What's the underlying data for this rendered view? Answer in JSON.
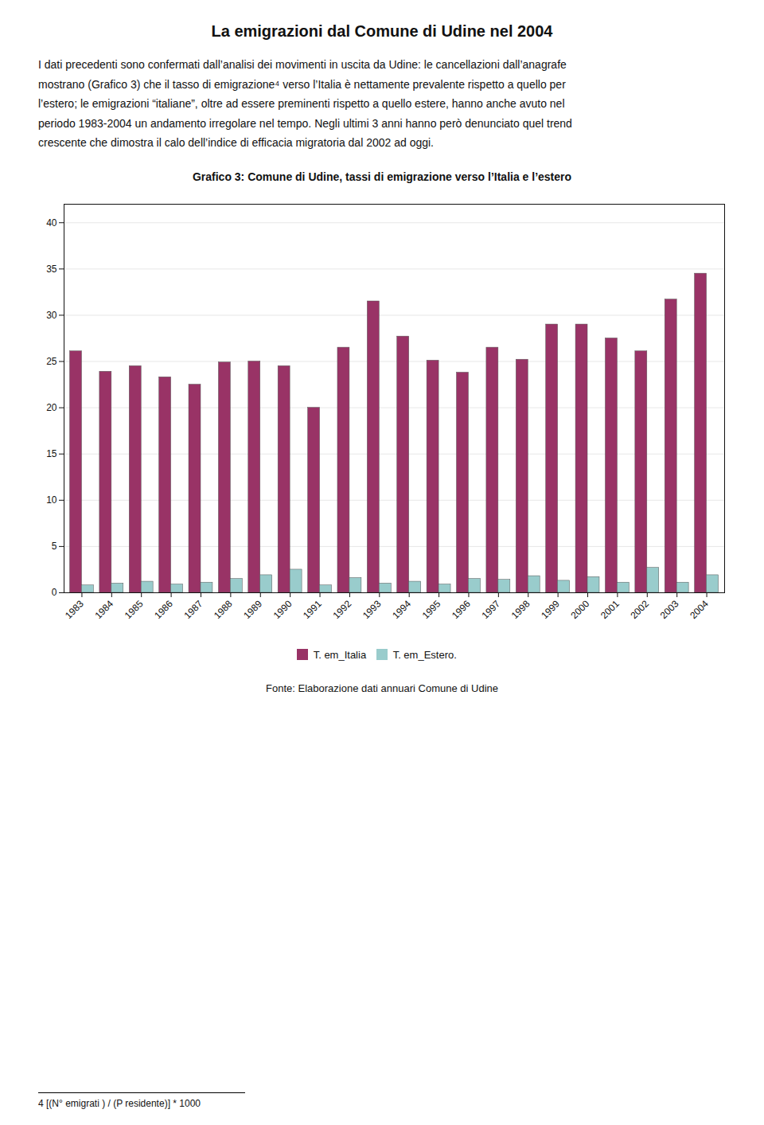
{
  "chart_data": {
    "type": "bar",
    "title": "La emigrazioni dal Comune di Udine nel 2004",
    "paragraph": [
      "I dati precedenti sono confermati dall’analisi dei movimenti in uscita da Udine: le cancellazioni dall’anagrafe",
      "mostrano (Grafico 3) che il tasso di emigrazione⁴ verso l’Italia è nettamente prevalente rispetto a quello per",
      "l’estero; le emigrazioni “italiane”, oltre ad essere preminenti rispetto a quello estere, hanno anche avuto nel",
      "periodo 1983-2004 un andamento irregolare nel tempo. Negli ultimi 3 anni hanno però denunciato quel trend",
      "crescente che dimostra il calo dell’indice di efficacia migratoria dal 2002 ad oggi."
    ],
    "subtitle": "Grafico 3: Comune di Udine, tassi di emigrazione verso l’Italia e l’estero",
    "source": "Fonte: Elaborazione dati annuari Comune di Udine",
    "footnote": "4 [(N° emigrati ) / (P residente)] * 1000",
    "categories": [
      "1983",
      "1984",
      "1985",
      "1986",
      "1987",
      "1988",
      "1989",
      "1990",
      "1991",
      "1992",
      "1993",
      "1994",
      "1995",
      "1996",
      "1997",
      "1998",
      "1999",
      "2000",
      "2001",
      "2002",
      "2003",
      "2004"
    ],
    "series": [
      {
        "name": "T. em_Italia",
        "color": "#993366",
        "values": [
          26.1,
          23.9,
          24.5,
          23.3,
          22.5,
          24.9,
          25.0,
          24.5,
          20.0,
          26.5,
          31.5,
          27.7,
          25.1,
          23.8,
          26.5,
          25.2,
          29.0,
          29.0,
          27.5,
          26.1,
          31.7,
          34.5
        ]
      },
      {
        "name": "T. em_Estero.",
        "color": "#99CCCC",
        "values": [
          0.8,
          1.0,
          1.2,
          0.9,
          1.1,
          1.5,
          1.9,
          2.5,
          0.8,
          1.6,
          1.0,
          1.2,
          0.9,
          1.5,
          1.4,
          1.8,
          1.3,
          1.7,
          1.1,
          2.7,
          1.1,
          1.9
        ]
      }
    ],
    "ylim": [
      0,
      42
    ],
    "yticks": [
      0,
      5,
      10,
      15,
      20,
      25,
      30,
      35,
      40
    ],
    "grid": true,
    "legend": "bottom"
  }
}
